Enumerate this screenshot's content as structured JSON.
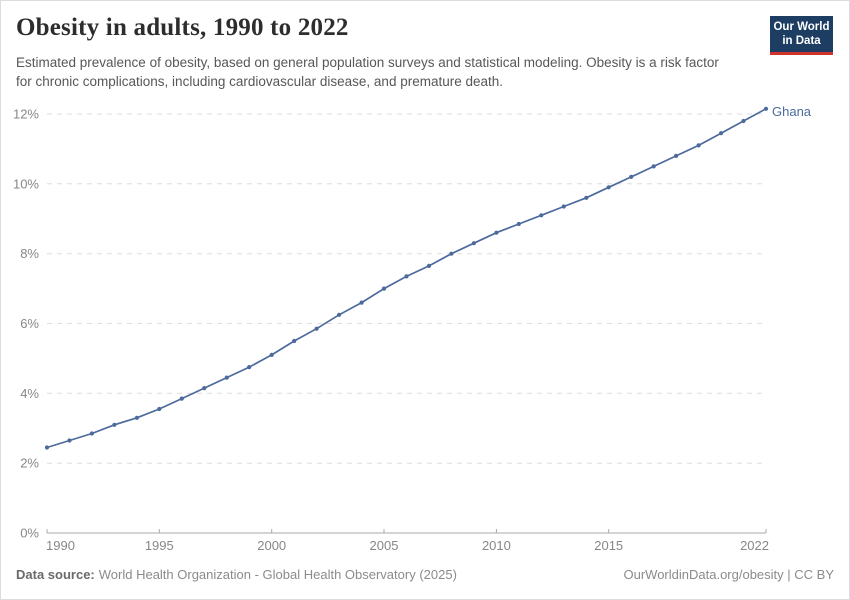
{
  "header": {
    "title": "Obesity in adults, 1990 to 2022",
    "subtitle": "Estimated prevalence of obesity, based on general population surveys and statistical modeling. Obesity is a risk factor for chronic complications, including cardiovascular disease, and premature death.",
    "logo": {
      "line1": "Our World",
      "line2": "in Data",
      "bg_color": "#1d3d63",
      "bar_color": "#d0332b"
    }
  },
  "chart_data": {
    "type": "line",
    "title": "Obesity in adults, 1990 to 2022",
    "xlabel": "",
    "ylabel": "",
    "xlim": [
      1990,
      2022
    ],
    "ylim": [
      0,
      12
    ],
    "x_ticks": [
      1990,
      1995,
      2000,
      2005,
      2010,
      2015,
      2022
    ],
    "y_ticks": [
      0,
      2,
      4,
      6,
      8,
      10,
      12
    ],
    "y_tick_suffix": "%",
    "grid": "dashed-horizontal",
    "legend": "end-of-line-label",
    "series": [
      {
        "name": "Ghana",
        "color": "#4C6A9C",
        "x": [
          1990,
          1991,
          1992,
          1993,
          1994,
          1995,
          1996,
          1997,
          1998,
          1999,
          2000,
          2001,
          2002,
          2003,
          2004,
          2005,
          2006,
          2007,
          2008,
          2009,
          2010,
          2011,
          2012,
          2013,
          2014,
          2015,
          2016,
          2017,
          2018,
          2019,
          2020,
          2021,
          2022
        ],
        "values": [
          2.45,
          2.65,
          2.85,
          3.1,
          3.3,
          3.55,
          3.85,
          4.15,
          4.45,
          4.75,
          5.1,
          5.5,
          5.85,
          6.25,
          6.6,
          7.0,
          7.35,
          7.65,
          8.0,
          8.3,
          8.6,
          8.85,
          9.1,
          9.35,
          9.6,
          9.9,
          10.2,
          10.5,
          10.8,
          11.1,
          11.45,
          11.8,
          12.15
        ]
      }
    ]
  },
  "footer": {
    "datasource_label": "Data source:",
    "datasource_text": "World Health Organization - Global Health Observatory (2025)",
    "rights": "OurWorldinData.org/obesity | CC BY"
  }
}
